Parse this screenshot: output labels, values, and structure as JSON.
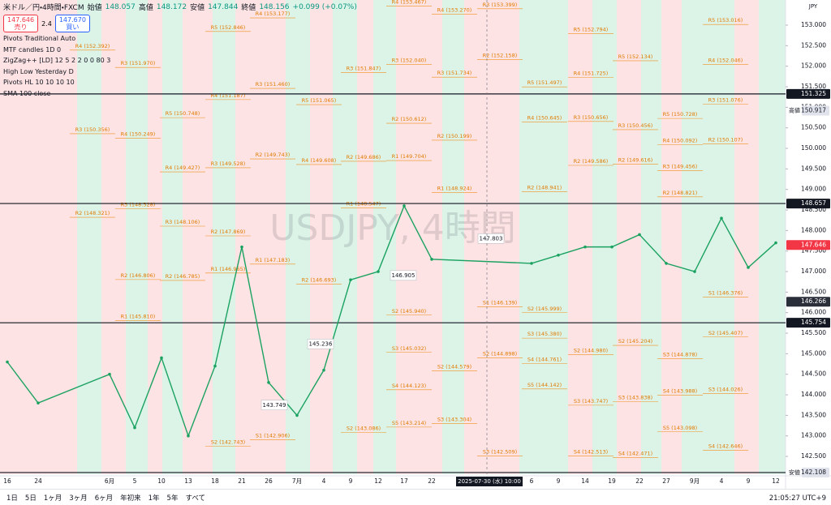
{
  "header": {
    "symbol": "米ドル／円・4時間・FXCM",
    "ohlc": [
      {
        "label": "始値",
        "value": "148.057"
      },
      {
        "label": "高値",
        "value": "148.172"
      },
      {
        "label": "安値",
        "value": "147.844"
      },
      {
        "label": "終値",
        "value": "148.156"
      }
    ],
    "change": "+0.099 (+0.07%)"
  },
  "trade": {
    "sell_price": "147.646",
    "sell": "売り",
    "spread": "2.4",
    "buy_price": "147.670",
    "buy": "買い"
  },
  "indicators": [
    "Pivots Traditional Auto",
    "MTF candles 1D 0",
    "ZigZag++ [LD] 12 5 2 2 0 0 80 3",
    "High Low Yesterday D",
    "Pivots HL 10 10 10 10",
    "SMA 100 close"
  ],
  "watermark": "USDJPY, 4時間",
  "chart_data": {
    "type": "line",
    "categories": [
      "16",
      "24",
      "6月",
      "5",
      "10",
      "13",
      "18",
      "21",
      "26",
      "7月",
      "4",
      "9",
      "12",
      "17",
      "22",
      "6",
      "9",
      "14",
      "19",
      "22",
      "27",
      "9月",
      "4",
      "9",
      "12"
    ],
    "values": [
      144.8,
      143.8,
      144.5,
      143.2,
      144.9,
      143.0,
      144.7,
      147.6,
      144.3,
      143.5,
      144.6,
      146.8,
      147.0,
      148.6,
      147.3,
      147.2,
      147.4,
      147.6,
      147.6,
      147.9,
      147.2,
      147.0,
      148.3,
      147.1,
      147.7
    ],
    "color": "#1aa260",
    "ylim": [
      142.067,
      153.612
    ],
    "yticks": [
      {
        "value": 153,
        "label": "153.000"
      },
      {
        "value": 152.5,
        "label": "152.500"
      },
      {
        "value": 152,
        "label": "152.000"
      },
      {
        "value": 151.5,
        "label": "151.500"
      },
      {
        "value": 151,
        "label": "151.000"
      },
      {
        "value": 150.5,
        "label": "150.500"
      },
      {
        "value": 150,
        "label": "150.000"
      },
      {
        "value": 149.5,
        "label": "149.500"
      },
      {
        "value": 149,
        "label": "149.000"
      },
      {
        "value": 148.5,
        "label": "148.500"
      },
      {
        "value": 148,
        "label": "148.000"
      },
      {
        "value": 147.5,
        "label": "147.500"
      },
      {
        "value": 147,
        "label": "147.000"
      },
      {
        "value": 146.5,
        "label": "146.500"
      },
      {
        "value": 146,
        "label": "146.000"
      },
      {
        "value": 145.5,
        "label": "145.500"
      },
      {
        "value": 145,
        "label": "145.000"
      },
      {
        "value": 144.5,
        "label": "144.500"
      },
      {
        "value": 144,
        "label": "144.000"
      },
      {
        "value": 143.5,
        "label": "143.500"
      },
      {
        "value": 143,
        "label": "143.000"
      },
      {
        "value": 142.5,
        "label": "142.500"
      }
    ],
    "currency": "JPY",
    "crosshair_label": "2025-07-30 (水) 10:00",
    "pivot_labels": [
      [
        {
          "value": 152.392,
          "label": "R4 (152.392)"
        },
        {
          "value": 150.356,
          "label": "R3 (150.356)"
        },
        {
          "value": 148.321,
          "label": "R2 (148.321)"
        }
      ],
      [
        {
          "value": 151.97,
          "label": "R3 (151.970)"
        },
        {
          "value": 150.249,
          "label": "R4 (150.249)"
        },
        {
          "value": 148.528,
          "label": "R3 (148.528)"
        },
        {
          "value": 146.806,
          "label": "R2 (146.806)"
        },
        {
          "value": 145.81,
          "label": "R1 (145.810)"
        }
      ],
      [
        {
          "value": 150.748,
          "label": "R5 (150.748)"
        },
        {
          "value": 149.427,
          "label": "R4 (149.427)"
        },
        {
          "value": 148.106,
          "label": "R3 (148.106)"
        },
        {
          "value": 146.785,
          "label": "R2 (146.785)"
        }
      ],
      [
        {
          "value": 152.846,
          "label": "R5 (152.846)"
        },
        {
          "value": 151.187,
          "label": "R4 (151.187)"
        },
        {
          "value": 149.528,
          "label": "R3 (149.528)"
        },
        {
          "value": 147.869,
          "label": "R2 (147.869)"
        },
        {
          "value": 146.965,
          "label": "R1 (146.965)"
        },
        {
          "value": 142.743,
          "label": "S2 (142.743)"
        }
      ],
      [
        {
          "value": 153.177,
          "label": "R4 (153.177)"
        },
        {
          "value": 151.46,
          "label": "R3 (151.460)"
        },
        {
          "value": 149.743,
          "label": "R2 (149.743)"
        },
        {
          "value": 147.183,
          "label": "R1 (147.183)"
        },
        {
          "value": 142.906,
          "label": "S1 (142.906)"
        }
      ],
      [
        {
          "value": 151.065,
          "label": "R5 (151.065)"
        },
        {
          "value": 149.608,
          "label": "R4 (149.608)"
        },
        {
          "value": 146.693,
          "label": "R2 (146.693)"
        }
      ],
      [
        {
          "value": 151.847,
          "label": "R3 (151.847)"
        },
        {
          "value": 149.686,
          "label": "R2 (149.686)"
        },
        {
          "value": 148.547,
          "label": "R1 (148.547)"
        },
        {
          "value": 143.086,
          "label": "S2 (143.086)"
        }
      ],
      [
        {
          "value": 153.467,
          "label": "R4 (153.467)"
        },
        {
          "value": 152.04,
          "label": "R3 (152.040)"
        },
        {
          "value": 150.612,
          "label": "R2 (150.612)"
        },
        {
          "value": 149.704,
          "label": "R1 (149.704)"
        },
        {
          "value": 145.94,
          "label": "S2 (145.940)"
        },
        {
          "value": 145.032,
          "label": "S3 (145.032)"
        },
        {
          "value": 144.123,
          "label": "S4 (144.123)"
        },
        {
          "value": 143.214,
          "label": "S5 (143.214)"
        }
      ],
      [
        {
          "value": 153.27,
          "label": "R4 (153.270)"
        },
        {
          "value": 151.734,
          "label": "R3 (151.734)"
        },
        {
          "value": 150.199,
          "label": "R2 (150.199)"
        },
        {
          "value": 148.924,
          "label": "R1 (148.924)"
        },
        {
          "value": 144.579,
          "label": "S2 (144.579)"
        },
        {
          "value": 143.304,
          "label": "S3 (143.304)"
        }
      ],
      [
        {
          "value": 153.399,
          "label": "R3 (153.399)"
        },
        {
          "value": 152.158,
          "label": "R2 (152.158)"
        },
        {
          "value": 146.139,
          "label": "S1 (146.139)"
        },
        {
          "value": 144.898,
          "label": "S2 (144.898)"
        },
        {
          "value": 142.509,
          "label": "S3 (142.509)"
        }
      ],
      [
        {
          "value": 151.497,
          "label": "R5 (151.497)"
        },
        {
          "value": 150.645,
          "label": "R4 (150.645)"
        },
        {
          "value": 148.941,
          "label": "R2 (148.941)"
        },
        {
          "value": 145.999,
          "label": "S2 (145.999)"
        },
        {
          "value": 145.38,
          "label": "S3 (145.380)"
        },
        {
          "value": 144.761,
          "label": "S4 (144.761)"
        },
        {
          "value": 144.142,
          "label": "S5 (144.142)"
        }
      ],
      [
        {
          "value": 152.794,
          "label": "R5 (152.794)"
        },
        {
          "value": 151.725,
          "label": "R4 (151.725)"
        },
        {
          "value": 150.656,
          "label": "R3 (150.656)"
        },
        {
          "value": 149.586,
          "label": "R2 (149.586)"
        },
        {
          "value": 144.98,
          "label": "S2 (144.980)"
        },
        {
          "value": 143.747,
          "label": "S3 (143.747)"
        },
        {
          "value": 142.513,
          "label": "S4 (142.513)"
        }
      ],
      [
        {
          "value": 152.134,
          "label": "R5 (152.134)"
        },
        {
          "value": 150.456,
          "label": "R3 (150.456)"
        },
        {
          "value": 149.616,
          "label": "R2 (149.616)"
        },
        {
          "value": 145.204,
          "label": "S2 (145.204)"
        },
        {
          "value": 143.838,
          "label": "S3 (143.838)"
        },
        {
          "value": 142.471,
          "label": "S4 (142.471)"
        }
      ],
      [
        {
          "value": 150.728,
          "label": "R5 (150.728)"
        },
        {
          "value": 150.092,
          "label": "R4 (150.092)"
        },
        {
          "value": 149.456,
          "label": "R3 (149.456)"
        },
        {
          "value": 148.821,
          "label": "R2 (148.821)"
        },
        {
          "value": 144.878,
          "label": "S3 (144.878)"
        },
        {
          "value": 143.988,
          "label": "S4 (143.988)"
        },
        {
          "value": 143.098,
          "label": "S5 (143.098)"
        }
      ],
      [
        {
          "value": 153.016,
          "label": "R5 (153.016)"
        },
        {
          "value": 152.046,
          "label": "R4 (152.046)"
        },
        {
          "value": 151.076,
          "label": "R3 (151.076)"
        },
        {
          "value": 150.107,
          "label": "R2 (150.107)"
        },
        {
          "value": 146.376,
          "label": "S1 (146.376)"
        },
        {
          "value": 145.407,
          "label": "S2 (145.407)"
        },
        {
          "value": 144.026,
          "label": "S3 (144.026)"
        },
        {
          "value": 142.646,
          "label": "S4 (142.646)"
        }
      ]
    ],
    "price_callouts": [
      147.803,
      146.905,
      145.236,
      143.749
    ],
    "axis_labels": [
      {
        "value": 151.325,
        "color": "#131722",
        "line": true
      },
      {
        "value": 150.917,
        "title": "高値",
        "color": "#e0e3eb"
      },
      {
        "value": 148.657,
        "color": "#131722",
        "line": true
      },
      {
        "value": 147.646,
        "color": "#f23645"
      },
      {
        "value": 146.266,
        "color": "#2a2e39"
      },
      {
        "value": 145.754,
        "color": "#131722",
        "line": true
      },
      {
        "value": 142.108,
        "title": "安値",
        "color": "#e0e3eb",
        "line": true
      }
    ]
  },
  "toolbar": {
    "ranges": [
      "1日",
      "5日",
      "1ヶ月",
      "3ヶ月",
      "6ヶ月",
      "年初来",
      "1年",
      "5年",
      "すべて"
    ],
    "clock": "21:05:27 UTC+9"
  }
}
